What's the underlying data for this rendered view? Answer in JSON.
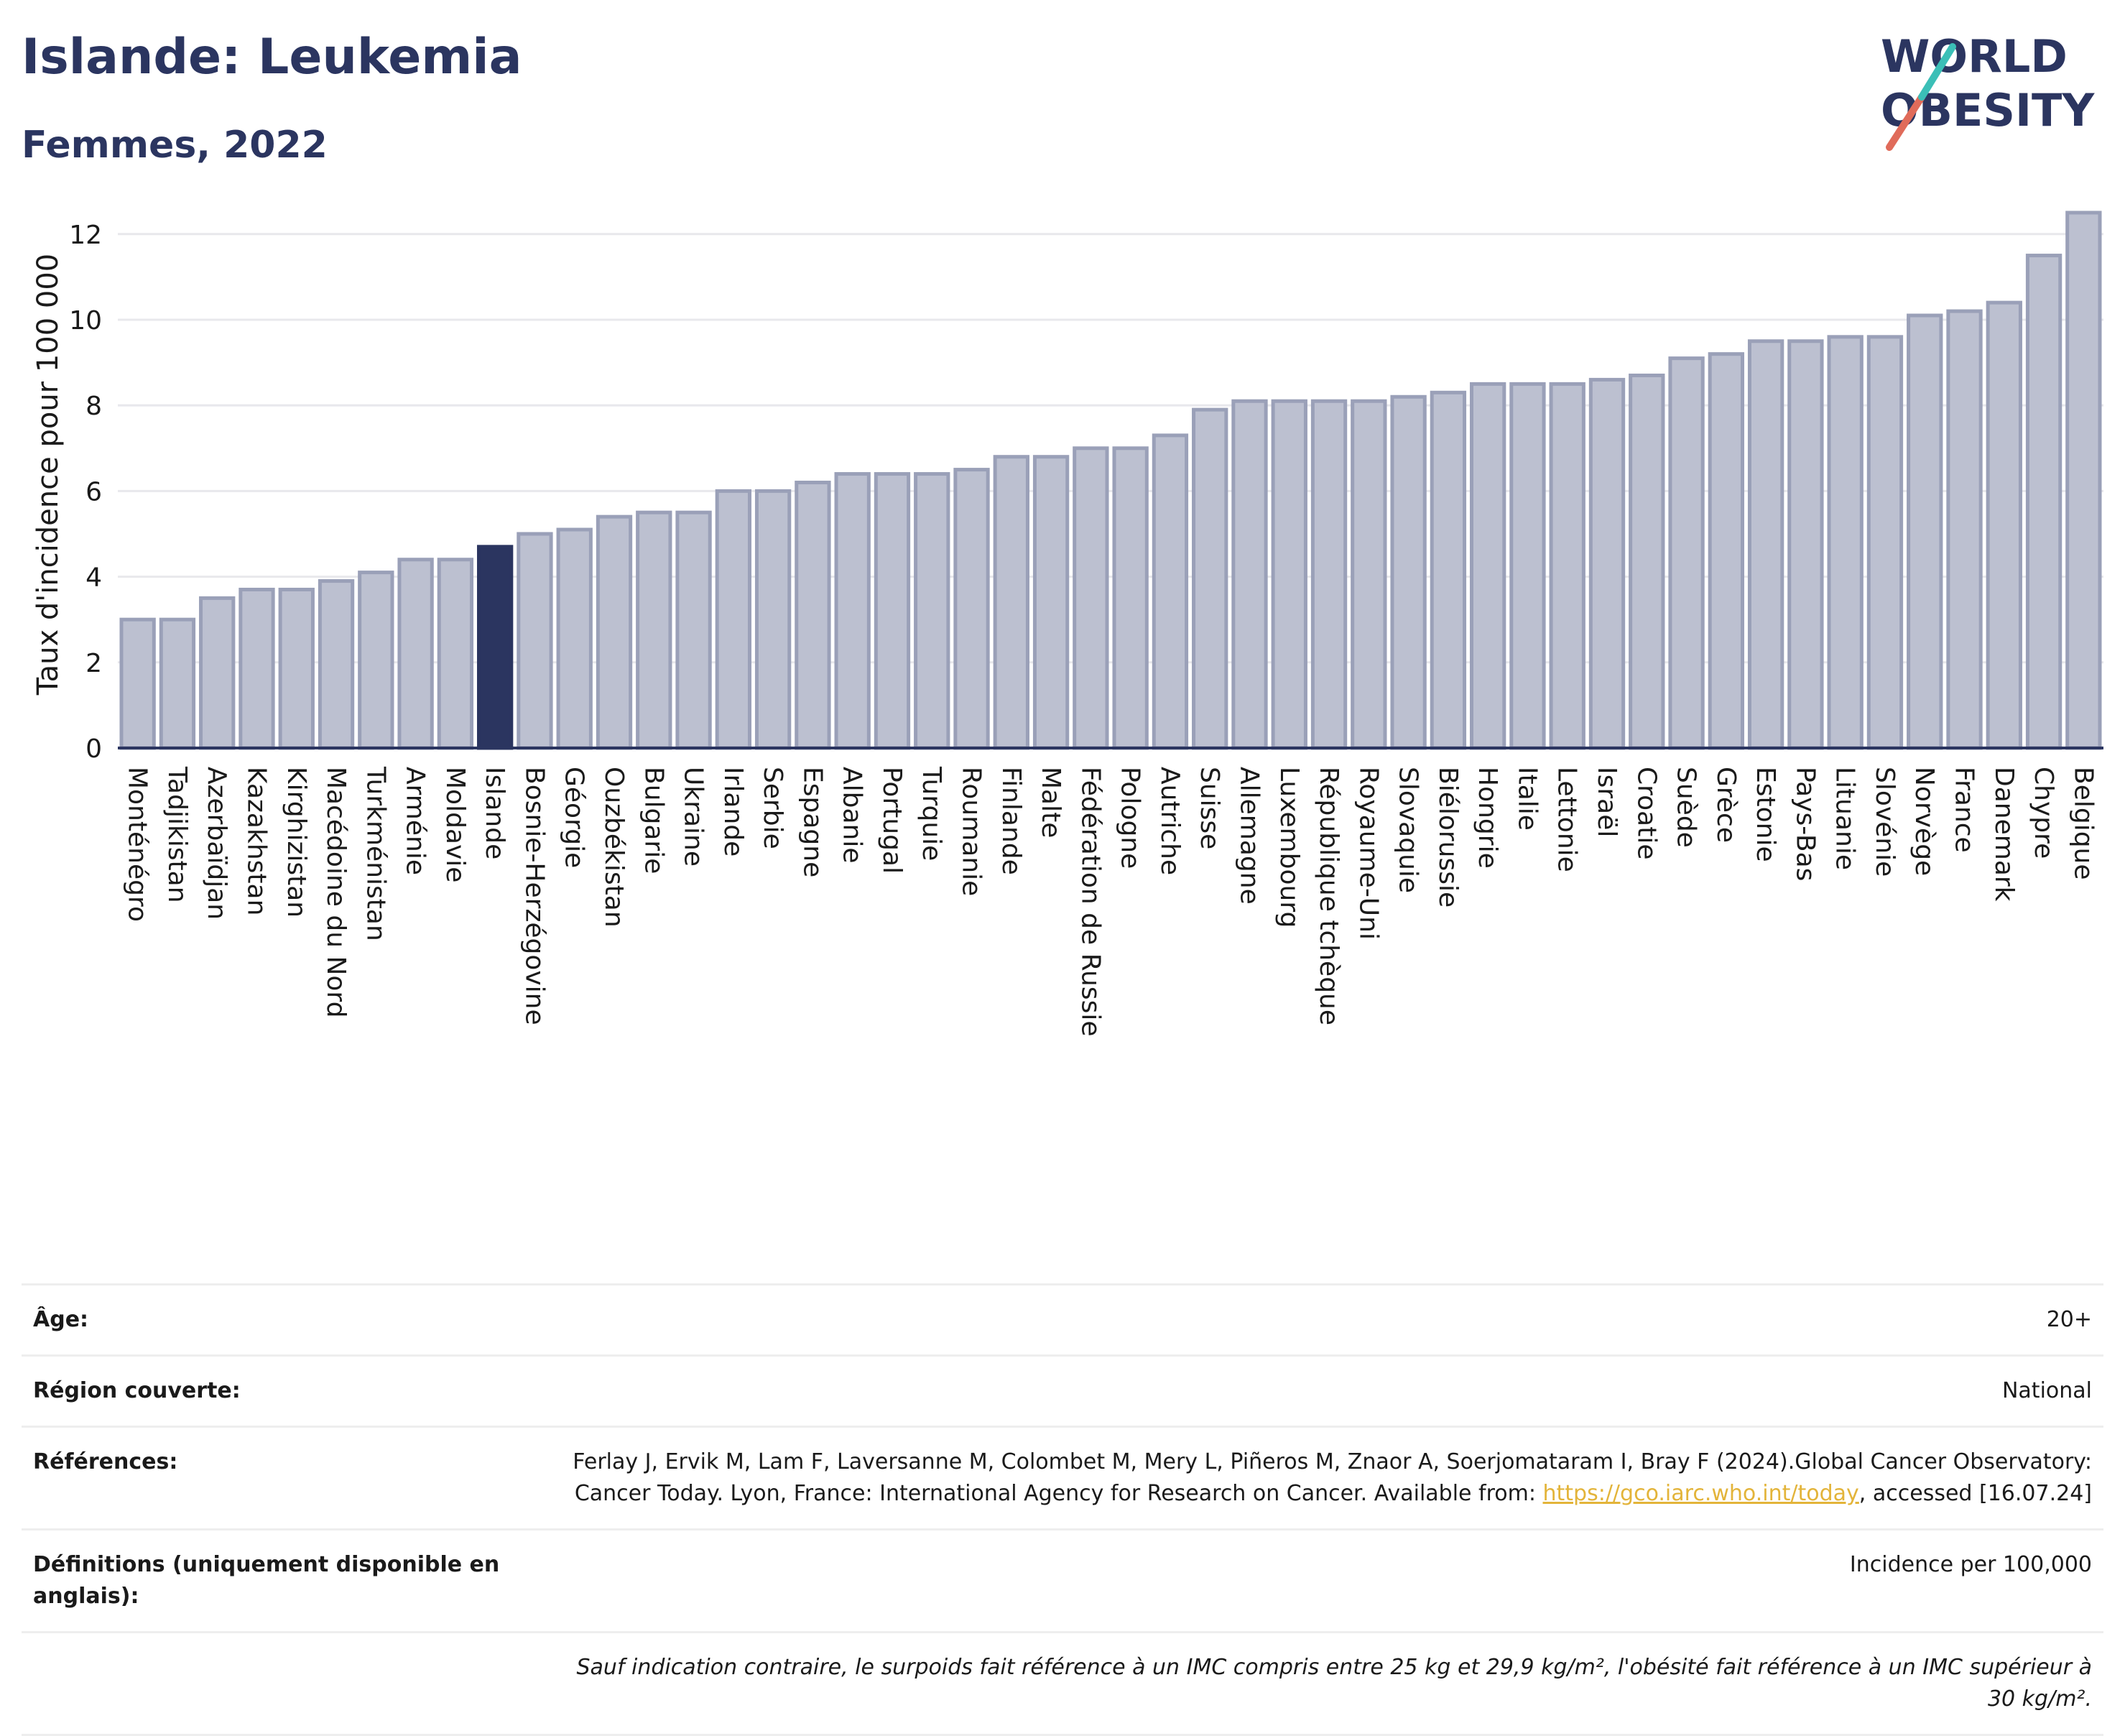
{
  "header": {
    "title": "Islande: Leukemia",
    "subtitle": "Femmes, 2022"
  },
  "logo": {
    "line1": "WORLD",
    "line2": "OBESITY",
    "slash_colors": [
      "#e06b5a",
      "#3bbfb7"
    ]
  },
  "colors": {
    "highlight": "#2b3560",
    "bar": "#bcc0d0",
    "bar_border": "#9aa0b8",
    "accent_link": "#e3b43a"
  },
  "chart_data": {
    "type": "bar",
    "title": "Islande: Leukemia",
    "subtitle": "Femmes, 2022",
    "xlabel": "",
    "ylabel": "Taux d'incidence pour 100 000",
    "ylim": [
      0,
      12.6
    ],
    "yticks": [
      0,
      2,
      4,
      6,
      8,
      10,
      12
    ],
    "grid": true,
    "highlight": "Islande",
    "categories": [
      "Monténégro",
      "Tadjikistan",
      "Azerbaïdjan",
      "Kazakhstan",
      "Kirghizistan",
      "Macédoine du Nord",
      "Turkménistan",
      "Arménie",
      "Moldavie",
      "Islande",
      "Bosnie-Herzégovine",
      "Géorgie",
      "Ouzbékistan",
      "Bulgarie",
      "Ukraine",
      "Irlande",
      "Serbie",
      "Espagne",
      "Albanie",
      "Portugal",
      "Turquie",
      "Roumanie",
      "Finlande",
      "Malte",
      "Fédération de Russie",
      "Pologne",
      "Autriche",
      "Suisse",
      "Allemagne",
      "Luxembourg",
      "République tchèque",
      "Royaume-Uni",
      "Slovaquie",
      "Biélorussie",
      "Hongrie",
      "Italie",
      "Lettonie",
      "Israël",
      "Croatie",
      "Suède",
      "Grèce",
      "Estonie",
      "Pays-Bas",
      "Lituanie",
      "Slovénie",
      "Norvège",
      "France",
      "Danemark",
      "Chypre",
      "Belgique"
    ],
    "values": [
      3.0,
      3.0,
      3.5,
      3.7,
      3.7,
      3.9,
      4.1,
      4.4,
      4.4,
      4.7,
      5.0,
      5.1,
      5.4,
      5.5,
      5.5,
      6.0,
      6.0,
      6.2,
      6.4,
      6.4,
      6.4,
      6.5,
      6.8,
      6.8,
      7.0,
      7.0,
      7.3,
      7.9,
      8.1,
      8.1,
      8.1,
      8.1,
      8.2,
      8.3,
      8.5,
      8.5,
      8.5,
      8.6,
      8.7,
      9.1,
      9.2,
      9.5,
      9.5,
      9.6,
      9.6,
      10.1,
      10.2,
      10.4,
      11.5,
      12.5
    ]
  },
  "info": {
    "age_label": "Âge:",
    "age_value": "20+",
    "region_label": "Région couverte:",
    "region_value": "National",
    "references_label": "Références:",
    "references_text_1": "Ferlay J, Ervik M, Lam F, Laversanne M, Colombet M, Mery L, Piñeros M, Znaor A, Soerjomataram I, Bray F (2024).Global Cancer Observatory: Cancer Today. Lyon, France: International Agency for Research on Cancer. Available from: ",
    "references_link": "https://gco.iarc.who.int/today",
    "references_text_2": ", accessed [16.07.24]",
    "definitions_label": "Définitions (uniquement disponible en anglais):",
    "definitions_value": "Incidence per 100,000",
    "note": "Sauf indication contraire, le surpoids fait référence à un IMC compris entre 25 kg et 29,9 kg/m², l'obésité fait référence à un IMC supérieur à 30 kg/m²."
  }
}
